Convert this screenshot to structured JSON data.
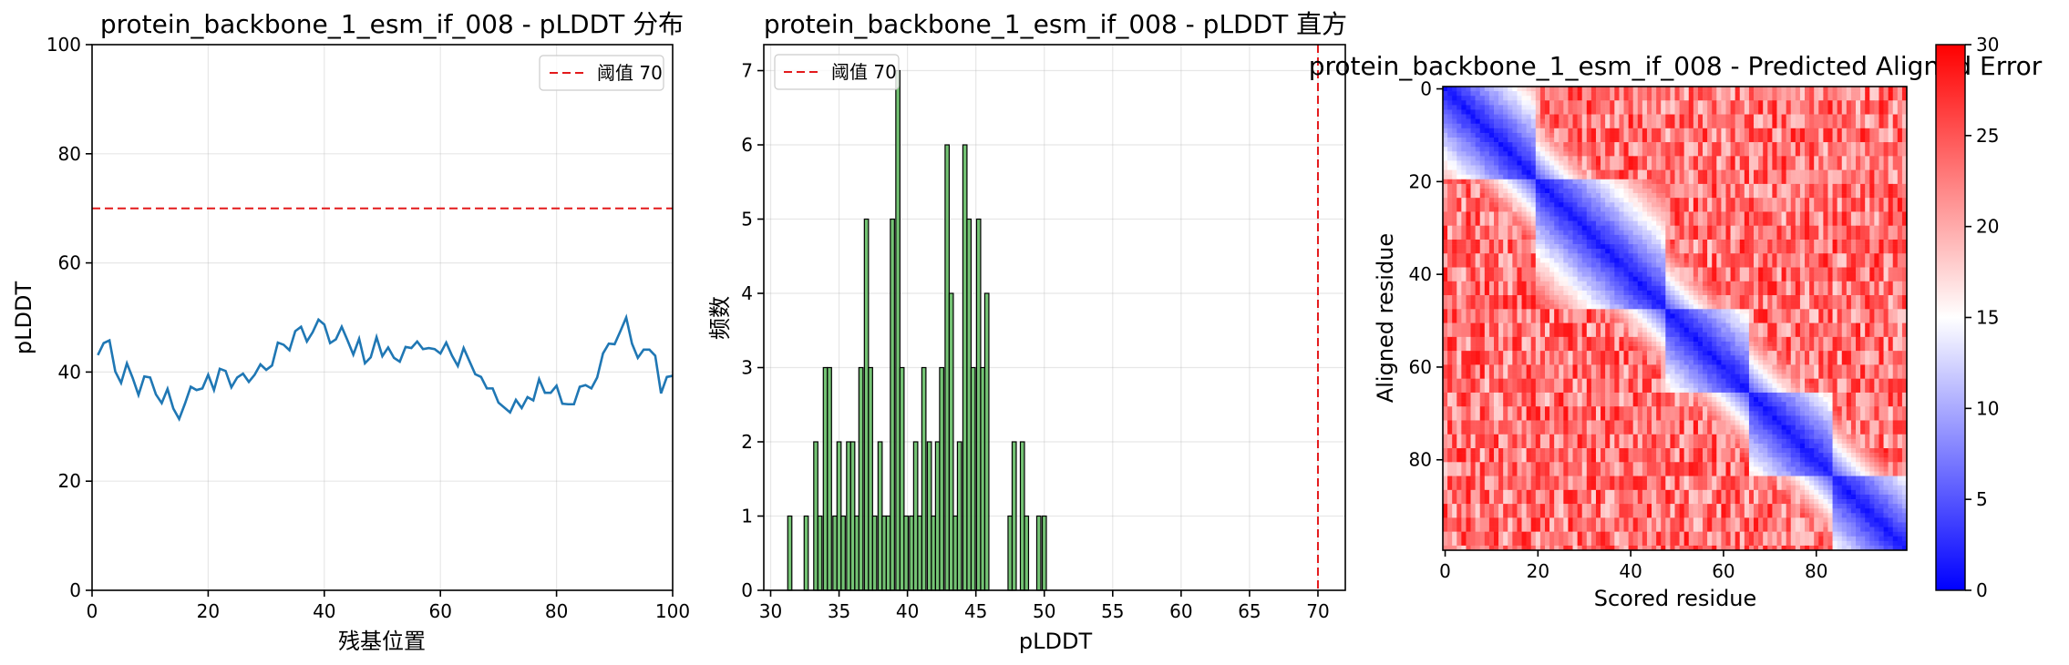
{
  "chart_data": [
    {
      "type": "line",
      "title": "protein_backbone_1_esm_if_008 - pLDDT 分布",
      "xlabel": "残基位置",
      "ylabel": "pLDDT",
      "xlim": [
        0,
        100
      ],
      "ylim": [
        0,
        100
      ],
      "xticks": [
        0,
        20,
        40,
        60,
        80,
        100
      ],
      "yticks": [
        0,
        20,
        40,
        60,
        80,
        100
      ],
      "grid": true,
      "legend": {
        "position": "top-right",
        "entries": [
          "阈值 70"
        ]
      },
      "threshold": {
        "value": 70,
        "label": "阈值 70",
        "color": "#e31a1c"
      },
      "series": [
        {
          "color": "#1f77b4",
          "x": [
            1,
            2,
            3,
            4,
            5,
            6,
            7,
            8,
            9,
            10,
            11,
            12,
            13,
            14,
            15,
            16,
            17,
            18,
            19,
            20,
            21,
            22,
            23,
            24,
            25,
            26,
            27,
            28,
            29,
            30,
            31,
            32,
            33,
            34,
            35,
            36,
            37,
            38,
            39,
            40,
            41,
            42,
            43,
            44,
            45,
            46,
            47,
            48,
            49,
            50,
            51,
            52,
            53,
            54,
            55,
            56,
            57,
            58,
            59,
            60,
            61,
            62,
            63,
            64,
            65,
            66,
            67,
            68,
            69,
            70,
            71,
            72,
            73,
            74,
            75,
            76,
            77,
            78,
            79,
            80,
            81,
            82,
            83,
            84,
            85,
            86,
            87,
            88,
            89,
            90,
            91,
            92,
            93,
            94,
            95,
            96,
            97,
            98,
            99,
            100
          ],
          "y": [
            43.1,
            45.3,
            45.8,
            40.1,
            38.0,
            41.6,
            38.9,
            35.8,
            39.2,
            39.0,
            35.9,
            34.3,
            36.9,
            33.3,
            31.4,
            34.2,
            37.3,
            36.7,
            37.0,
            39.5,
            36.7,
            40.6,
            40.2,
            37.2,
            39.0,
            39.7,
            38.2,
            39.5,
            41.4,
            40.4,
            41.2,
            45.4,
            45.0,
            44.0,
            47.5,
            48.3,
            45.6,
            47.3,
            49.6,
            48.7,
            45.3,
            46.0,
            48.3,
            45.8,
            43.2,
            46.1,
            41.6,
            42.7,
            46.4,
            42.9,
            44.5,
            42.6,
            41.9,
            44.6,
            44.4,
            45.6,
            44.2,
            44.4,
            44.2,
            43.4,
            45.4,
            43.0,
            41.1,
            44.4,
            42.0,
            39.6,
            39.1,
            37.0,
            37.0,
            34.4,
            33.5,
            32.6,
            34.9,
            33.4,
            35.4,
            34.8,
            38.7,
            36.2,
            36.2,
            37.5,
            34.2,
            34.1,
            34.1,
            37.3,
            37.6,
            37.0,
            39.0,
            43.4,
            45.2,
            45.1,
            47.5,
            50.0,
            45.2,
            42.6,
            44.1,
            44.1,
            43.0,
            36.1,
            39.1,
            39.3
          ]
        }
      ]
    },
    {
      "type": "bar",
      "title": "protein_backbone_1_esm_if_008 - pLDDT 直方",
      "xlabel": "pLDDT",
      "ylabel": "频数",
      "xlim": [
        29.5,
        72
      ],
      "ylim": [
        0,
        7.35
      ],
      "xticks": [
        30,
        35,
        40,
        45,
        50,
        55,
        60,
        65,
        70
      ],
      "yticks": [
        0,
        1,
        2,
        3,
        4,
        5,
        6,
        7
      ],
      "grid": true,
      "legend": {
        "position": "top-left",
        "entries": [
          "阈值 70"
        ]
      },
      "threshold": {
        "value": 70,
        "label": "阈值 70",
        "color": "#e31a1c"
      },
      "bar_color": "#5cb85c",
      "bar_width": 0.3,
      "bins": [
        {
          "x": 31.4,
          "count": 1
        },
        {
          "x": 32.6,
          "count": 1
        },
        {
          "x": 33.3,
          "count": 2
        },
        {
          "x": 33.6,
          "count": 1
        },
        {
          "x": 34.0,
          "count": 3
        },
        {
          "x": 34.3,
          "count": 3
        },
        {
          "x": 34.7,
          "count": 1
        },
        {
          "x": 35.0,
          "count": 2
        },
        {
          "x": 35.3,
          "count": 1
        },
        {
          "x": 35.7,
          "count": 2
        },
        {
          "x": 36.0,
          "count": 2
        },
        {
          "x": 36.3,
          "count": 1
        },
        {
          "x": 36.6,
          "count": 3
        },
        {
          "x": 37.0,
          "count": 5
        },
        {
          "x": 37.3,
          "count": 3
        },
        {
          "x": 37.6,
          "count": 1
        },
        {
          "x": 38.0,
          "count": 2
        },
        {
          "x": 38.3,
          "count": 1
        },
        {
          "x": 38.6,
          "count": 1
        },
        {
          "x": 38.9,
          "count": 5
        },
        {
          "x": 39.3,
          "count": 7
        },
        {
          "x": 39.6,
          "count": 3
        },
        {
          "x": 39.9,
          "count": 1
        },
        {
          "x": 40.3,
          "count": 1
        },
        {
          "x": 40.6,
          "count": 2
        },
        {
          "x": 40.9,
          "count": 1
        },
        {
          "x": 41.2,
          "count": 3
        },
        {
          "x": 41.6,
          "count": 2
        },
        {
          "x": 41.9,
          "count": 1
        },
        {
          "x": 42.2,
          "count": 2
        },
        {
          "x": 42.5,
          "count": 3
        },
        {
          "x": 42.9,
          "count": 6
        },
        {
          "x": 43.2,
          "count": 4
        },
        {
          "x": 43.5,
          "count": 1
        },
        {
          "x": 43.8,
          "count": 2
        },
        {
          "x": 44.2,
          "count": 6
        },
        {
          "x": 44.5,
          "count": 5
        },
        {
          "x": 44.8,
          "count": 3
        },
        {
          "x": 45.2,
          "count": 5
        },
        {
          "x": 45.5,
          "count": 3
        },
        {
          "x": 45.8,
          "count": 4
        },
        {
          "x": 47.5,
          "count": 1
        },
        {
          "x": 47.8,
          "count": 2
        },
        {
          "x": 48.4,
          "count": 2
        },
        {
          "x": 48.7,
          "count": 1
        },
        {
          "x": 49.6,
          "count": 1
        },
        {
          "x": 50.0,
          "count": 1
        }
      ]
    },
    {
      "type": "heatmap",
      "title": "protein_backbone_1_esm_if_008 - Predicted Aligned Error",
      "xlabel": "Scored residue",
      "ylabel": "Aligned residue",
      "size": 100,
      "xticks": [
        0,
        20,
        40,
        60,
        80
      ],
      "yticks": [
        0,
        20,
        40,
        60,
        80
      ],
      "colormap": "bwr",
      "colorbar": {
        "min": 0,
        "max": 30,
        "ticks": [
          0,
          5,
          10,
          15,
          20,
          25,
          30
        ]
      },
      "domains": [
        [
          0,
          20
        ],
        [
          20,
          48
        ],
        [
          48,
          66
        ],
        [
          66,
          84
        ],
        [
          84,
          100
        ]
      ],
      "offdiag_min": 8,
      "offdiag_max": 29,
      "diag_min": 0.5,
      "diag_slope": 0.9
    }
  ]
}
